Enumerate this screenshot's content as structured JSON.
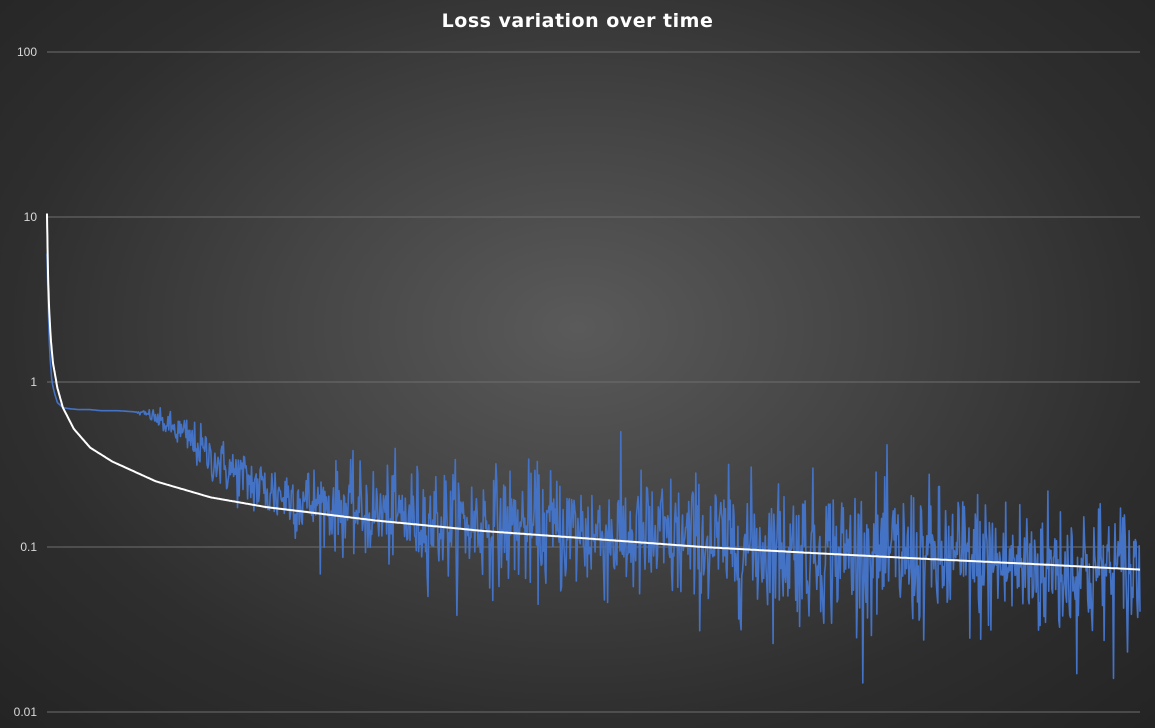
{
  "chart_data": {
    "type": "line",
    "title": "Loss variation over time",
    "xlabel": "",
    "ylabel": "",
    "y_scale": "log",
    "ylim": [
      0.01,
      100
    ],
    "y_ticks": [
      "100",
      "10",
      "1",
      "0.1",
      "0.01"
    ],
    "y_tick_values": [
      100,
      10,
      1,
      0.1,
      0.01
    ],
    "grid": true,
    "legend": "none",
    "x_range": [
      1,
      2000
    ],
    "series": [
      {
        "color": "#4472c4",
        "description": "loss per step (noisy)",
        "x": [
          1,
          3,
          6,
          10,
          15,
          20,
          30,
          40,
          60,
          80,
          100,
          130,
          160,
          190,
          220,
          250,
          280,
          300,
          330,
          360,
          400,
          500,
          600,
          700,
          800,
          900,
          1000,
          1100,
          1200,
          1300,
          1400,
          1500,
          1600,
          1700,
          1800,
          1900,
          2000
        ],
        "y": [
          6.0,
          3.0,
          1.5,
          1.0,
          0.85,
          0.75,
          0.7,
          0.69,
          0.68,
          0.68,
          0.67,
          0.67,
          0.66,
          0.63,
          0.55,
          0.48,
          0.4,
          0.35,
          0.3,
          0.26,
          0.22,
          0.18,
          0.16,
          0.145,
          0.135,
          0.13,
          0.12,
          0.11,
          0.105,
          0.1,
          0.095,
          0.09,
          0.085,
          0.08,
          0.075,
          0.072,
          0.068
        ],
        "noise_amplitude": [
          0,
          0,
          0,
          0,
          0,
          0,
          0,
          0,
          0,
          0,
          0,
          0,
          0,
          0.02,
          0.04,
          0.06,
          0.07,
          0.07,
          0.08,
          0.09,
          0.1,
          0.12,
          0.14,
          0.16,
          0.17,
          0.18,
          0.19,
          0.2,
          0.2,
          0.2,
          0.21,
          0.21,
          0.22,
          0.22,
          0.22,
          0.22,
          0.22
        ]
      },
      {
        "color": "#ffffff",
        "description": "trend line",
        "x": [
          1,
          2,
          3,
          5,
          8,
          12,
          20,
          30,
          50,
          80,
          120,
          200,
          300,
          400,
          600,
          800,
          1000,
          1200,
          1400,
          1600,
          1800,
          2000
        ],
        "y": [
          10.5,
          6.5,
          4.3,
          2.7,
          1.8,
          1.3,
          0.92,
          0.7,
          0.52,
          0.4,
          0.33,
          0.25,
          0.2,
          0.175,
          0.145,
          0.125,
          0.112,
          0.1,
          0.092,
          0.085,
          0.079,
          0.073
        ]
      }
    ]
  }
}
